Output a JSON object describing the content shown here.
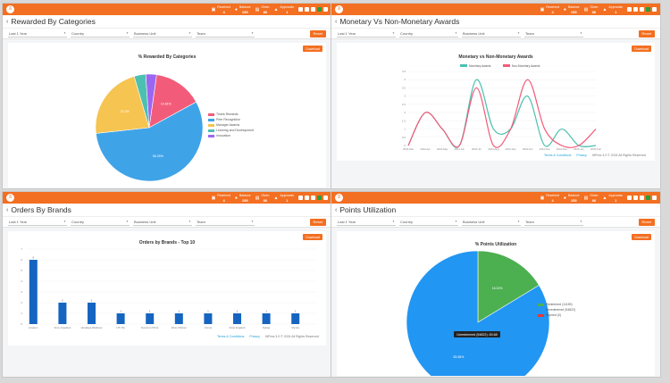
{
  "topbar": {
    "menu_icon": "grid-icon",
    "stats": [
      {
        "label": "Received",
        "value": "4",
        "icon": "gift-icon"
      },
      {
        "label": "Balance",
        "value": "155",
        "icon": "coin-icon"
      },
      {
        "label": "Given",
        "value": "86",
        "icon": "hand-icon"
      },
      {
        "label": "Approvals",
        "value": "1",
        "icon": "thumbsup-icon"
      }
    ]
  },
  "filters": {
    "period": "Last 1 Year",
    "country": "Country",
    "business_unit": "Business Unit",
    "team": "Team",
    "reset_label": "Reset",
    "download_label": "Download"
  },
  "footer": {
    "terms": "Terms & Conditions",
    "privacy": "Privacy",
    "copyright": "HiPres 3.0 © 2024 All Rights Reserved"
  },
  "panels": {
    "categories": {
      "title": "Rewarded By Categories",
      "chart_title": "% Rewarded By Categories",
      "colors": [
        "#f25c7a",
        "#3fa3e8",
        "#f5c451",
        "#4bc0b0",
        "#9b66f2"
      ],
      "slice_labels": [
        "14.81%",
        "56.25%",
        "22.2%"
      ]
    },
    "monetary": {
      "title": "Monetary Vs Non-Monetary Awards",
      "chart_title": "Monetary vs Non-Monetary Awards",
      "colors": [
        "#4bc0b0",
        "#f25c7a"
      ]
    },
    "brands": {
      "title": "Orders By Brands",
      "chart_title": "Orders by Brands - Top 10",
      "bar_color": "#1565c0"
    },
    "points": {
      "title": "Points Utilization",
      "chart_title": "% Points Utilization",
      "colors": [
        "#4caf50",
        "#2196f3",
        "#e53935"
      ],
      "slice_labels": [
        "16.32%",
        "83.68%"
      ],
      "tooltip": "Unredeemed (54822): 83.68"
    }
  },
  "chart_data": [
    {
      "type": "pie",
      "title": "% Rewarded By Categories",
      "labels": [
        "Thank Rewards",
        "Peer Recognition",
        "Manager Awards",
        "Learning and Development",
        "Innovation"
      ],
      "values": [
        14.81,
        56.25,
        22.2,
        3.5,
        3.24
      ]
    },
    {
      "type": "line",
      "title": "Monetary vs Non-Monetary Awards",
      "x": [
        "2024-Mar",
        "2024-Apr",
        "2024-May",
        "2024-Jun",
        "2024-Jul",
        "2024-Aug",
        "2024-Sep",
        "2024-Oct",
        "2024-Nov",
        "2024-Dec",
        "2025-Jan",
        "2025-Feb"
      ],
      "series": [
        {
          "name": "Monetary Awards",
          "values": [
            0,
            2,
            1,
            0,
            4,
            1,
            1,
            3,
            0,
            1,
            0,
            0
          ]
        },
        {
          "name": "Non-Monetary Awards",
          "values": [
            0,
            2,
            1,
            0,
            3.5,
            0,
            1,
            4,
            1,
            0,
            0,
            1
          ]
        }
      ],
      "ylim": [
        0,
        4.5
      ],
      "yticks": [
        "0",
        "0.5",
        "1",
        "1.5",
        "2",
        "2.5",
        "3",
        "3.5",
        "4",
        "4.5"
      ]
    },
    {
      "type": "bar",
      "title": "Orders by Brands - Top 10",
      "categories": [
        "Amazon",
        "Sony Jewellers",
        "Himalaya Wellness",
        "LTF Ply",
        "Domino's Pizza",
        "Wow Chicken",
        "Croma",
        "Peter England",
        "Nykaa",
        "Myntra"
      ],
      "values": [
        6,
        2,
        2,
        1,
        1,
        1,
        1,
        1,
        1,
        1
      ],
      "ylim": [
        0,
        7
      ],
      "yticks": [
        "0",
        "1",
        "2",
        "3",
        "4",
        "5",
        "6",
        "7"
      ]
    },
    {
      "type": "pie",
      "title": "% Points Utilization",
      "labels": [
        "Redeemed (11159)",
        "Unredeemed (54822)",
        "Expired (0)"
      ],
      "values": [
        16.32,
        83.68,
        0
      ]
    }
  ]
}
